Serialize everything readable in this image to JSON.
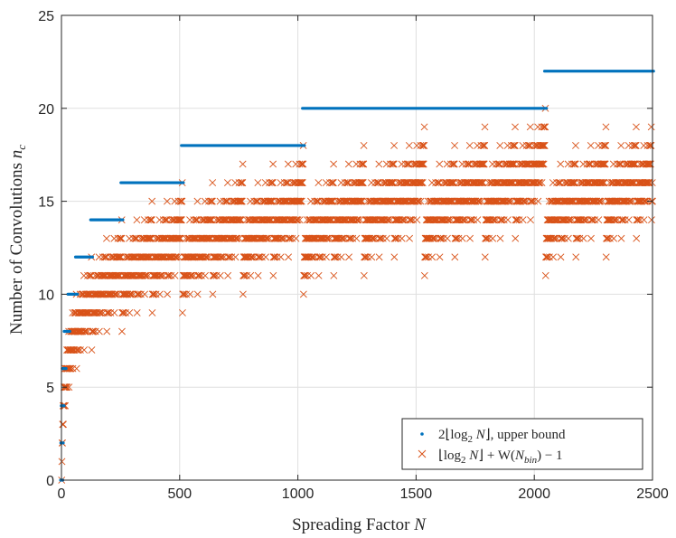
{
  "chart_data": {
    "type": "scatter",
    "xlabel": "Spreading Factor N",
    "ylabel": "Number of Convolutions n_c",
    "xlim": [
      0,
      2500
    ],
    "ylim": [
      0,
      25
    ],
    "x_ticks": [
      "0",
      "500",
      "1000",
      "1500",
      "2000",
      "2500"
    ],
    "y_ticks": [
      "0",
      "5",
      "10",
      "15",
      "20",
      "25"
    ],
    "grid": true,
    "legend_position": "bottom-right",
    "colors": {
      "upper_bound": "#0072BD",
      "actual": "#D95319",
      "grid": "#dfdfdf",
      "axis": "#262626"
    },
    "series": [
      {
        "name": "2⌊log₂ N⌋, upper bound",
        "marker": "dot",
        "segments": [
          {
            "x_from": 1,
            "x_to": 1,
            "y": 0
          },
          {
            "x_from": 2,
            "x_to": 3,
            "y": 2
          },
          {
            "x_from": 4,
            "x_to": 7,
            "y": 4
          },
          {
            "x_from": 8,
            "x_to": 15,
            "y": 6
          },
          {
            "x_from": 16,
            "x_to": 31,
            "y": 8
          },
          {
            "x_from": 32,
            "x_to": 63,
            "y": 10
          },
          {
            "x_from": 64,
            "x_to": 127,
            "y": 12
          },
          {
            "x_from": 128,
            "x_to": 255,
            "y": 14
          },
          {
            "x_from": 256,
            "x_to": 511,
            "y": 16
          },
          {
            "x_from": 512,
            "x_to": 1023,
            "y": 18
          },
          {
            "x_from": 1024,
            "x_to": 2047,
            "y": 20
          },
          {
            "x_from": 2048,
            "x_to": 2500,
            "y": 22
          }
        ]
      },
      {
        "name": "⌊log₂ N⌋ + W(N_bin) − 1",
        "marker": "x",
        "formula": "floor(log2(N)) + popcount(N) - 1",
        "x_range": [
          1,
          2500
        ]
      }
    ],
    "legend": [
      {
        "label_html": "2⌊log<tspan baseline-shift=\"-4\" font-size=\"11\">2</tspan> <tspan font-style=\"italic\">N</tspan>⌋, upper bound"
      },
      {
        "label_html": "⌊log<tspan baseline-shift=\"-4\" font-size=\"11\">2</tspan> <tspan font-style=\"italic\">N</tspan>⌋ + W(<tspan font-style=\"italic\">N</tspan><tspan baseline-shift=\"-4\" font-size=\"11\" font-style=\"italic\">bin</tspan>) − 1"
      }
    ]
  }
}
